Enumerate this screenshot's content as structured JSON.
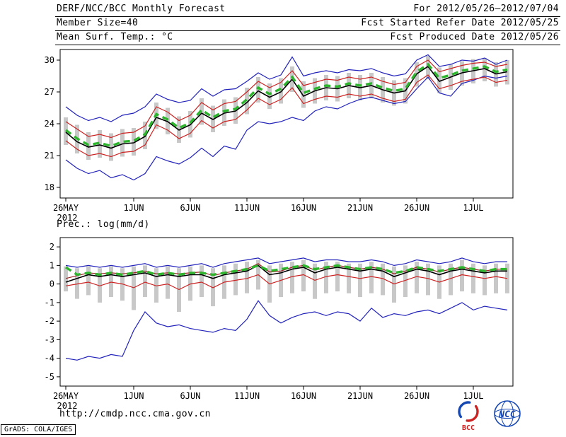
{
  "header": {
    "rows": [
      {
        "left": "DERF/NCC/BCC Monthly Forecast",
        "right": "For 2012/05/26—2012/07/04"
      },
      {
        "left": "Member Size=40",
        "right": "Fcst Started Refer Date 2012/05/25"
      },
      {
        "left": "Mean Surf. Temp.: °C",
        "right": "Fcst Produced Date 2012/05/26"
      }
    ]
  },
  "footer": {
    "url": "http://cmdp.ncc.cma.gov.cn",
    "credit": "GrADS: COLA/IGES",
    "logos": [
      {
        "name": "bcc-logo",
        "label": "BCC",
        "color": "#cc2222"
      },
      {
        "name": "ncc-logo",
        "label": "NCC",
        "color": "#1648b4"
      }
    ]
  },
  "chart_data": [
    {
      "type": "line",
      "title": "Mean Surf. Temp.: °C",
      "x_year": "2012",
      "n_points": 40,
      "ylim": [
        17,
        31
      ],
      "yticks": [
        18,
        21,
        24,
        27,
        30
      ],
      "xticks": [
        {
          "i": 0,
          "label": "26MAY"
        },
        {
          "i": 6,
          "label": "1JUN"
        },
        {
          "i": 11,
          "label": "6JUN"
        },
        {
          "i": 16,
          "label": "11JUN"
        },
        {
          "i": 21,
          "label": "16JUN"
        },
        {
          "i": 26,
          "label": "21JUN"
        },
        {
          "i": 31,
          "label": "26JUN"
        },
        {
          "i": 36,
          "label": "1JUL"
        }
      ],
      "colors": {
        "bars": "#c8c8c8"
      },
      "bars": {
        "low": [
          22.0,
          21.2,
          20.6,
          20.8,
          20.5,
          20.9,
          21.0,
          21.6,
          23.5,
          23.0,
          22.2,
          22.7,
          23.9,
          23.2,
          23.8,
          24.0,
          24.9,
          26.0,
          25.4,
          25.9,
          27.0,
          25.5,
          25.9,
          26.2,
          26.1,
          26.4,
          26.2,
          26.4,
          26.0,
          25.7,
          25.9,
          27.5,
          28.2,
          26.9,
          27.2,
          27.6,
          27.8,
          28.0,
          27.5,
          27.7
        ],
        "high": [
          24.6,
          23.9,
          23.2,
          23.4,
          23.1,
          23.5,
          23.6,
          24.2,
          26.0,
          25.5,
          24.7,
          25.2,
          26.4,
          25.7,
          26.3,
          26.5,
          27.4,
          28.4,
          27.8,
          28.3,
          29.4,
          28.0,
          28.3,
          28.6,
          28.5,
          28.8,
          28.6,
          28.8,
          28.4,
          28.1,
          28.3,
          29.8,
          30.4,
          29.3,
          29.6,
          29.9,
          30.1,
          30.2,
          29.8,
          30.0
        ]
      },
      "series": [
        {
          "name": "ensemble-min",
          "color": "#2222bb",
          "width": 1.2,
          "dash": "",
          "values": [
            20.6,
            19.8,
            19.3,
            19.6,
            18.9,
            19.2,
            18.7,
            19.3,
            20.9,
            20.5,
            20.2,
            20.8,
            21.7,
            20.9,
            21.9,
            21.6,
            23.4,
            24.2,
            24.0,
            24.2,
            24.6,
            24.3,
            25.2,
            25.6,
            25.4,
            25.9,
            26.3,
            26.5,
            26.2,
            25.9,
            26.1,
            27.3,
            28.4,
            26.9,
            26.6,
            27.8,
            28.1,
            28.5,
            28.3,
            28.5
          ]
        },
        {
          "name": "ensemble-max",
          "color": "#2222bb",
          "width": 1.2,
          "dash": "",
          "values": [
            25.6,
            24.8,
            24.3,
            24.6,
            24.2,
            24.8,
            25.0,
            25.6,
            26.8,
            26.3,
            26.0,
            26.2,
            27.3,
            26.6,
            27.2,
            27.3,
            28.0,
            28.8,
            28.2,
            28.6,
            30.3,
            28.5,
            28.8,
            29.0,
            28.8,
            29.1,
            29.0,
            29.2,
            28.8,
            28.5,
            28.7,
            30.0,
            30.5,
            29.4,
            29.6,
            30.0,
            29.9,
            30.2,
            29.6,
            30.0
          ]
        },
        {
          "name": "lower-quartile",
          "color": "#cc2222",
          "width": 1.2,
          "dash": "",
          "values": [
            22.4,
            21.6,
            21.0,
            21.2,
            20.9,
            21.3,
            21.4,
            22.0,
            23.9,
            23.4,
            22.6,
            23.1,
            24.3,
            23.6,
            24.2,
            24.4,
            25.3,
            26.4,
            25.8,
            26.3,
            27.4,
            25.9,
            26.3,
            26.6,
            26.5,
            26.8,
            26.6,
            26.8,
            26.4,
            26.1,
            26.3,
            27.9,
            28.6,
            27.3,
            27.6,
            28.0,
            28.2,
            28.4,
            27.9,
            28.1
          ]
        },
        {
          "name": "upper-quartile",
          "color": "#cc2222",
          "width": 1.2,
          "dash": "",
          "values": [
            24.2,
            23.5,
            22.8,
            23.0,
            22.7,
            23.1,
            23.2,
            23.8,
            25.6,
            25.1,
            24.3,
            24.8,
            26.0,
            25.3,
            25.9,
            26.1,
            27.0,
            28.0,
            27.4,
            27.9,
            29.0,
            27.6,
            27.9,
            28.2,
            28.1,
            28.4,
            28.2,
            28.4,
            28.0,
            27.7,
            27.9,
            29.4,
            30.0,
            28.9,
            29.2,
            29.5,
            29.7,
            29.8,
            29.4,
            29.6
          ]
        },
        {
          "name": "median",
          "color": "#000000",
          "width": 1.6,
          "dash": "",
          "values": [
            23.2,
            22.3,
            21.8,
            22.0,
            21.7,
            22.1,
            22.2,
            22.8,
            24.6,
            24.2,
            23.4,
            23.9,
            25.0,
            24.4,
            25.0,
            25.2,
            26.0,
            27.1,
            26.5,
            27.0,
            28.2,
            26.6,
            27.1,
            27.4,
            27.3,
            27.6,
            27.4,
            27.6,
            27.2,
            26.9,
            27.1,
            28.7,
            29.4,
            28.0,
            28.4,
            28.8,
            29.0,
            29.2,
            28.7,
            28.9
          ]
        },
        {
          "name": "ensemble-mean",
          "color": "#2db52d",
          "width": 3.4,
          "dash": "9 6",
          "values": [
            23.4,
            22.6,
            22.0,
            22.2,
            21.9,
            22.3,
            22.4,
            23.0,
            24.9,
            24.4,
            23.6,
            24.1,
            25.3,
            24.6,
            25.2,
            25.4,
            26.3,
            27.4,
            26.8,
            27.3,
            28.4,
            26.9,
            27.3,
            27.6,
            27.5,
            27.8,
            27.6,
            27.8,
            27.4,
            27.1,
            27.3,
            28.9,
            29.6,
            28.3,
            28.6,
            29.0,
            29.2,
            29.4,
            28.9,
            29.1
          ]
        }
      ]
    },
    {
      "type": "line",
      "title": "Prec.: log(mm/d)",
      "x_year": "2012",
      "n_points": 40,
      "ylim": [
        -5.5,
        2.5
      ],
      "yticks": [
        -5,
        -4,
        -3,
        -2,
        -1,
        0,
        1,
        2
      ],
      "xticks": [
        {
          "i": 0,
          "label": "26MAY"
        },
        {
          "i": 6,
          "label": "1JUN"
        },
        {
          "i": 11,
          "label": "6JUN"
        },
        {
          "i": 16,
          "label": "11JUN"
        },
        {
          "i": 21,
          "label": "16JUN"
        },
        {
          "i": 26,
          "label": "21JUN"
        },
        {
          "i": 31,
          "label": "26JUN"
        },
        {
          "i": 36,
          "label": "1JUL"
        }
      ],
      "colors": {
        "bars": "#c8c8c8"
      },
      "bars": {
        "low": [
          -0.4,
          -0.8,
          -0.6,
          -1.0,
          -0.7,
          -0.9,
          -1.4,
          -0.7,
          -1.0,
          -0.8,
          -1.5,
          -0.9,
          -0.7,
          -1.2,
          -0.8,
          -0.6,
          -0.5,
          -0.3,
          -1.0,
          -0.7,
          -0.5,
          -0.4,
          -0.8,
          -0.5,
          -0.4,
          -0.5,
          -0.7,
          -0.5,
          -0.6,
          -1.0,
          -0.7,
          -0.5,
          -0.6,
          -0.8,
          -0.6,
          -0.4,
          -0.5,
          -0.6,
          -0.5,
          -0.5
        ],
        "high": [
          0.95,
          0.85,
          0.95,
          0.85,
          0.95,
          0.85,
          0.95,
          1.0,
          0.85,
          0.95,
          0.85,
          0.95,
          1.0,
          0.85,
          1.0,
          1.1,
          1.2,
          1.3,
          1.0,
          1.1,
          1.2,
          1.3,
          1.1,
          1.2,
          1.2,
          1.1,
          1.1,
          1.2,
          1.1,
          0.95,
          1.0,
          1.2,
          1.1,
          1.0,
          1.1,
          1.3,
          1.1,
          1.0,
          1.1,
          1.1
        ]
      },
      "series": [
        {
          "name": "ensemble-min",
          "color": "#2222bb",
          "width": 1.2,
          "dash": "",
          "values": [
            -4.0,
            -4.1,
            -3.9,
            -4.0,
            -3.8,
            -3.9,
            -2.5,
            -1.5,
            -2.1,
            -2.3,
            -2.2,
            -2.4,
            -2.5,
            -2.6,
            -2.4,
            -2.5,
            -1.9,
            -0.9,
            -1.7,
            -2.1,
            -1.8,
            -1.6,
            -1.5,
            -1.7,
            -1.5,
            -1.6,
            -2.0,
            -1.3,
            -1.8,
            -1.6,
            -1.7,
            -1.5,
            -1.4,
            -1.6,
            -1.3,
            -1.0,
            -1.4,
            -1.2,
            -1.3,
            -1.4
          ]
        },
        {
          "name": "ensemble-max",
          "color": "#2222bb",
          "width": 1.2,
          "dash": "",
          "values": [
            1.0,
            0.9,
            1.0,
            0.9,
            1.0,
            0.9,
            1.0,
            1.1,
            0.9,
            1.0,
            0.9,
            1.0,
            1.1,
            0.9,
            1.1,
            1.2,
            1.3,
            1.4,
            1.1,
            1.2,
            1.3,
            1.4,
            1.2,
            1.3,
            1.3,
            1.2,
            1.2,
            1.3,
            1.2,
            1.0,
            1.1,
            1.3,
            1.2,
            1.1,
            1.2,
            1.4,
            1.2,
            1.1,
            1.2,
            1.2
          ]
        },
        {
          "name": "lower-quartile",
          "color": "#cc2222",
          "width": 1.2,
          "dash": "",
          "values": [
            -0.1,
            0.0,
            0.1,
            -0.1,
            0.1,
            0.0,
            -0.2,
            0.1,
            -0.1,
            0.0,
            -0.3,
            0.0,
            0.1,
            -0.2,
            0.1,
            0.2,
            0.3,
            0.5,
            0.0,
            0.2,
            0.4,
            0.5,
            0.2,
            0.4,
            0.5,
            0.4,
            0.3,
            0.4,
            0.3,
            0.0,
            0.2,
            0.4,
            0.3,
            0.1,
            0.3,
            0.5,
            0.4,
            0.3,
            0.4,
            0.3
          ]
        },
        {
          "name": "upper-quartile",
          "color": "#992222",
          "width": 1.2,
          "dash": "",
          "values": [
            0.3,
            0.45,
            0.6,
            0.55,
            0.6,
            0.55,
            0.6,
            0.7,
            0.55,
            0.6,
            0.55,
            0.6,
            0.65,
            0.45,
            0.6,
            0.7,
            0.8,
            1.1,
            0.65,
            0.7,
            0.9,
            1.0,
            0.75,
            0.9,
            1.0,
            0.9,
            0.8,
            0.9,
            0.8,
            0.55,
            0.7,
            0.9,
            0.8,
            0.65,
            0.8,
            0.9,
            0.8,
            0.7,
            0.8,
            0.8
          ]
        },
        {
          "name": "median",
          "color": "#000000",
          "width": 1.6,
          "dash": "",
          "values": [
            0.1,
            0.3,
            0.5,
            0.4,
            0.5,
            0.4,
            0.5,
            0.6,
            0.4,
            0.5,
            0.4,
            0.5,
            0.5,
            0.3,
            0.5,
            0.6,
            0.7,
            1.0,
            0.5,
            0.6,
            0.8,
            0.9,
            0.6,
            0.8,
            0.9,
            0.8,
            0.7,
            0.8,
            0.7,
            0.4,
            0.6,
            0.8,
            0.7,
            0.5,
            0.7,
            0.8,
            0.7,
            0.6,
            0.7,
            0.7
          ]
        },
        {
          "name": "ensemble-mean",
          "color": "#2db52d",
          "width": 3.4,
          "dash": "9 6",
          "values": [
            0.9,
            0.5,
            0.6,
            0.5,
            0.6,
            0.5,
            0.6,
            0.7,
            0.5,
            0.6,
            0.5,
            0.6,
            0.6,
            0.5,
            0.6,
            0.7,
            0.8,
            1.0,
            0.7,
            0.8,
            0.9,
            1.0,
            0.8,
            0.9,
            1.0,
            0.9,
            0.8,
            0.9,
            0.8,
            0.6,
            0.7,
            0.9,
            0.8,
            0.7,
            0.8,
            0.9,
            0.8,
            0.7,
            0.8,
            0.8
          ]
        }
      ]
    }
  ]
}
